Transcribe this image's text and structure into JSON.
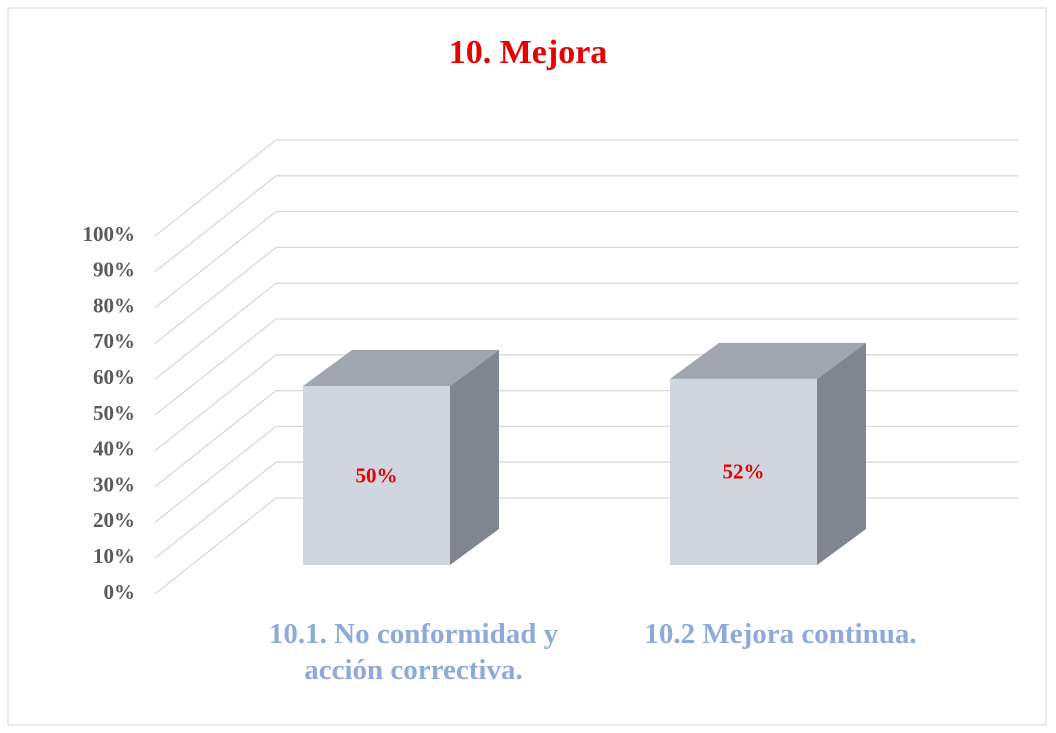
{
  "chart_data": {
    "type": "bar3d",
    "title": "10. Mejora",
    "categories": [
      "10.1. No conformidad y acción correctiva.",
      "10.2 Mejora continua."
    ],
    "values": [
      50,
      52
    ],
    "value_labels": [
      "50%",
      "52%"
    ],
    "ylim": [
      0,
      100
    ],
    "yticks": [
      {
        "value": 0,
        "label": "0%"
      },
      {
        "value": 10,
        "label": "10%"
      },
      {
        "value": 20,
        "label": "20%"
      },
      {
        "value": 30,
        "label": "30%"
      },
      {
        "value": 40,
        "label": "40%"
      },
      {
        "value": 50,
        "label": "50%"
      },
      {
        "value": 60,
        "label": "60%"
      },
      {
        "value": 70,
        "label": "70%"
      },
      {
        "value": 80,
        "label": "80%"
      },
      {
        "value": 90,
        "label": "90%"
      },
      {
        "value": 100,
        "label": "100%"
      }
    ],
    "grid": true,
    "color": "#d0d6e0"
  }
}
